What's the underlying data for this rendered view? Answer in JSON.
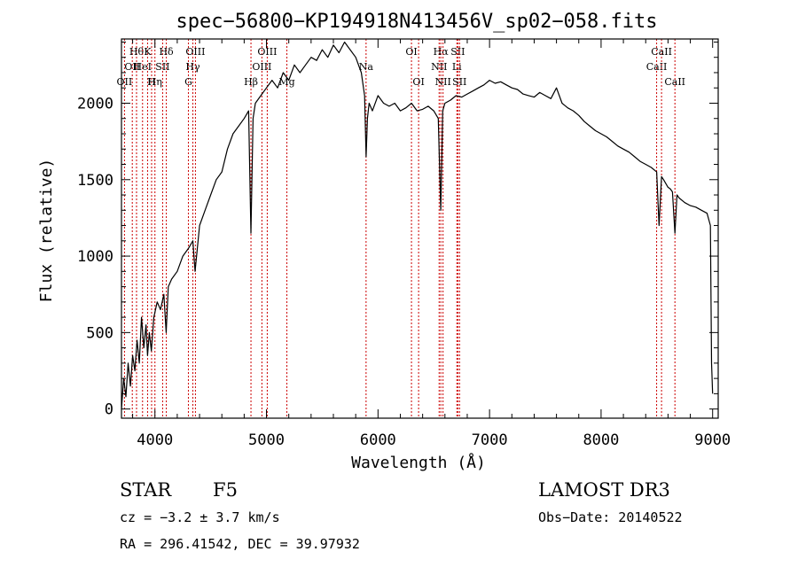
{
  "chart_data": {
    "type": "line",
    "title": "spec−56800−KP194918N413456V_sp02−058.fits",
    "xlabel": "Wavelength (Å)",
    "ylabel": "Flux (relative)",
    "xlim": [
      3700,
      9050
    ],
    "ylim": [
      -60,
      2420
    ],
    "x_ticks": [
      4000,
      5000,
      6000,
      7000,
      8000,
      9000
    ],
    "y_ticks": [
      0,
      500,
      1000,
      1500,
      2000
    ],
    "line_color": "#000000",
    "marker_color": "#cc0000",
    "series": [
      {
        "x": [
          3700,
          3720,
          3740,
          3760,
          3780,
          3800,
          3820,
          3840,
          3860,
          3880,
          3900,
          3920,
          3934,
          3950,
          3968,
          3990,
          4020,
          4050,
          4080,
          4101,
          4120,
          4150,
          4200,
          4250,
          4300,
          4340,
          4360,
          4400,
          4450,
          4500,
          4550,
          4600,
          4650,
          4700,
          4750,
          4800,
          4840,
          4861,
          4880,
          4900,
          4950,
          5000,
          5050,
          5100,
          5150,
          5200,
          5250,
          5300,
          5350,
          5400,
          5450,
          5500,
          5550,
          5600,
          5650,
          5700,
          5750,
          5800,
          5850,
          5880,
          5893,
          5905,
          5920,
          5950,
          6000,
          6050,
          6100,
          6150,
          6200,
          6250,
          6300,
          6350,
          6400,
          6450,
          6500,
          6540,
          6563,
          6580,
          6600,
          6650,
          6700,
          6750,
          6800,
          6850,
          6900,
          6950,
          7000,
          7050,
          7100,
          7150,
          7200,
          7250,
          7300,
          7350,
          7400,
          7450,
          7500,
          7550,
          7600,
          7650,
          7700,
          7750,
          7800,
          7850,
          7900,
          7950,
          8000,
          8050,
          8100,
          8150,
          8200,
          8250,
          8300,
          8350,
          8400,
          8450,
          8498,
          8520,
          8542,
          8560,
          8600,
          8620,
          8640,
          8662,
          8680,
          8700,
          8750,
          8800,
          8850,
          8900,
          8950,
          8980,
          8990,
          9000
        ],
        "y": [
          0,
          200,
          80,
          300,
          150,
          350,
          250,
          450,
          300,
          600,
          400,
          550,
          350,
          500,
          380,
          600,
          700,
          650,
          750,
          500,
          800,
          850,
          900,
          1000,
          1050,
          1100,
          900,
          1200,
          1300,
          1400,
          1500,
          1550,
          1700,
          1800,
          1850,
          1900,
          1950,
          1150,
          1900,
          2000,
          2050,
          2100,
          2150,
          2100,
          2200,
          2150,
          2250,
          2200,
          2250,
          2300,
          2280,
          2350,
          2300,
          2380,
          2330,
          2400,
          2350,
          2300,
          2200,
          2050,
          1650,
          1900,
          2000,
          1950,
          2050,
          2000,
          1980,
          2000,
          1950,
          1970,
          2000,
          1950,
          1960,
          1980,
          1950,
          1900,
          1300,
          1950,
          2000,
          2020,
          2050,
          2040,
          2060,
          2080,
          2100,
          2120,
          2150,
          2130,
          2140,
          2120,
          2100,
          2090,
          2060,
          2050,
          2040,
          2070,
          2050,
          2030,
          2100,
          2000,
          1970,
          1950,
          1920,
          1880,
          1850,
          1820,
          1800,
          1780,
          1750,
          1720,
          1700,
          1680,
          1650,
          1620,
          1600,
          1580,
          1550,
          1200,
          1520,
          1500,
          1450,
          1440,
          1420,
          1150,
          1400,
          1380,
          1350,
          1330,
          1320,
          1300,
          1280,
          1200,
          300,
          100
        ]
      }
    ],
    "line_markers": [
      {
        "x": 3727,
        "label": "OII",
        "row": 2
      },
      {
        "x": 3797,
        "label": "OII",
        "row": 1
      },
      {
        "x": 3835,
        "label": "Hθ",
        "row": 0
      },
      {
        "x": 3889,
        "label": "HeI",
        "row": 1
      },
      {
        "x": 3934,
        "label": "K",
        "row": 0
      },
      {
        "x": 3970,
        "label": "H",
        "row": 2
      },
      {
        "x": 4000,
        "label": "Hη",
        "row": 2
      },
      {
        "x": 4069,
        "label": "SII",
        "row": 1
      },
      {
        "x": 4102,
        "label": "Hδ",
        "row": 0
      },
      {
        "x": 4300,
        "label": "G",
        "row": 2
      },
      {
        "x": 4340,
        "label": "Hγ",
        "row": 1
      },
      {
        "x": 4363,
        "label": "OIII",
        "row": 0
      },
      {
        "x": 4861,
        "label": "Hβ",
        "row": 2
      },
      {
        "x": 4959,
        "label": "OIII",
        "row": 1
      },
      {
        "x": 5007,
        "label": "OIII",
        "row": 0
      },
      {
        "x": 5183,
        "label": "Mg",
        "row": 2
      },
      {
        "x": 5893,
        "label": "Na",
        "row": 1
      },
      {
        "x": 6300,
        "label": "OI",
        "row": 0
      },
      {
        "x": 6364,
        "label": "OI",
        "row": 2
      },
      {
        "x": 6548,
        "label": "NII",
        "row": 1
      },
      {
        "x": 6563,
        "label": "Hα",
        "row": 0
      },
      {
        "x": 6583,
        "label": "NII",
        "row": 2
      },
      {
        "x": 6707,
        "label": "Li",
        "row": 1
      },
      {
        "x": 6716,
        "label": "SII",
        "row": 0
      },
      {
        "x": 6731,
        "label": "SII",
        "row": 2
      },
      {
        "x": 8498,
        "label": "CaII",
        "row": 1
      },
      {
        "x": 8542,
        "label": "CaII",
        "row": 0
      },
      {
        "x": 8662,
        "label": "CaII",
        "row": 2
      }
    ]
  },
  "info": {
    "object_class": "STAR",
    "subclass": "F5",
    "survey": "LAMOST DR3",
    "redshift": "cz = −3.2 ± 3.7 km/s",
    "obs_date": "Obs−Date: 20140522",
    "coords": "RA = 296.41542, DEC =  39.97932"
  }
}
